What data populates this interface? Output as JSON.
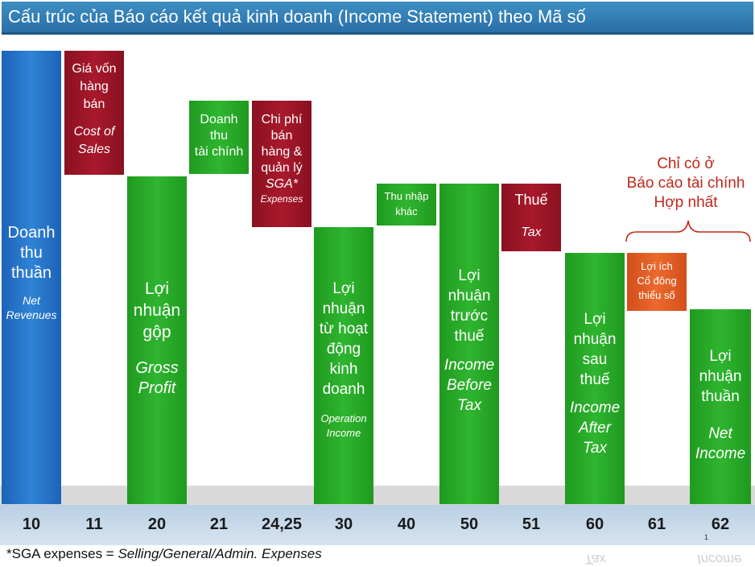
{
  "title": "Cấu trúc của Báo cáo kết quả kinh doanh (Income Statement) theo Mã số",
  "boxes": {
    "b10": {
      "vi": [
        "Doanh",
        "thu",
        "thuần"
      ],
      "en": [
        "Net",
        "Revenues"
      ],
      "code": "10"
    },
    "b11": {
      "vi": [
        "Giá vốn",
        "hàng",
        "bán"
      ],
      "en": [
        "Cost of",
        "Sales"
      ],
      "code": "11"
    },
    "b20": {
      "vi": [
        "Lợi",
        "nhuận",
        "gộp"
      ],
      "en": [
        "Gross",
        "Profit"
      ],
      "code": "20"
    },
    "b21": {
      "vi": [
        "Doanh",
        "thu",
        "tài chính"
      ],
      "code": "21"
    },
    "b24": {
      "vi": [
        "Chi phí",
        "bán",
        "hàng &",
        "quản lý"
      ],
      "en": [
        "SGA*",
        "Expenses"
      ],
      "code": "24,25"
    },
    "b30": {
      "vi": [
        "Lợi",
        "nhuận",
        "từ hoạt",
        "động",
        "kinh",
        "doanh"
      ],
      "en": [
        "Operation",
        "Income"
      ],
      "code": "30"
    },
    "b40": {
      "vi": [
        "Thu nhập",
        "khác"
      ],
      "code": "40"
    },
    "b50": {
      "vi": [
        "Lợi",
        "nhuận",
        "trước",
        "thuế"
      ],
      "en": [
        "Income",
        "Before",
        "Tax"
      ],
      "code": "50"
    },
    "b51": {
      "vi": [
        "Thuế"
      ],
      "en": [
        "Tax"
      ],
      "code": "51"
    },
    "b60": {
      "vi": [
        "Lợi",
        "nhuận",
        "sau",
        "thuế"
      ],
      "en": [
        "Income",
        "After",
        "Tax"
      ],
      "code": "60"
    },
    "b61": {
      "vi": [
        "Lợi ích",
        "Cổ đông",
        "thiểu số"
      ],
      "code": "61"
    },
    "b62": {
      "vi": [
        "Lợi",
        "nhuận",
        "thuần"
      ],
      "en": [
        "Net",
        "Income"
      ],
      "code": "62"
    }
  },
  "note": [
    "Chỉ có ở",
    "Báo cáo tài chính",
    "Hợp nhất"
  ],
  "footnote_prefix": "*SGA expenses = ",
  "footnote_italic": "Selling/General/Admin. Expenses",
  "page_number": "1",
  "colors": {
    "green": "#2fb52f",
    "red": "#a8192c",
    "blue": "#2f83d6",
    "orange": "#ea6a2d",
    "note_red": "#c0281c",
    "title_bg": "#2a6fa7"
  }
}
